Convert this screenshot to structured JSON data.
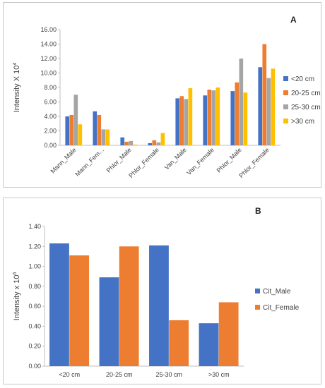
{
  "chart_data": [
    {
      "type": "bar",
      "panel_label": "A",
      "ylabel_base": "Intensity X 10",
      "ylabel_exp": "4",
      "ylim": [
        0,
        16
      ],
      "yticks": [
        "0.00",
        "2.00",
        "4.00",
        "6.00",
        "8.00",
        "10.00",
        "12.00",
        "14.00",
        "16.00"
      ],
      "categories": [
        "Mann_Male",
        "Mann_Fem...",
        "Phlor_Male",
        "Phlor_Female",
        "Van_Male",
        "Van_Female",
        "Phlor_Male",
        "Phlor_Female"
      ],
      "legend_position": "right",
      "series": [
        {
          "name": "<20 cm",
          "color": "#4472c4",
          "values": [
            4.0,
            4.7,
            1.1,
            0.3,
            6.5,
            6.9,
            7.5,
            10.8
          ]
        },
        {
          "name": "20-25 cm",
          "color": "#ed7d31",
          "values": [
            4.2,
            4.2,
            0.5,
            0.7,
            6.8,
            7.7,
            8.7,
            14.0
          ]
        },
        {
          "name": "25-30 cm",
          "color": "#a5a5a5",
          "values": [
            7.0,
            2.2,
            0.6,
            0.4,
            6.4,
            7.6,
            12.0,
            9.3
          ]
        },
        {
          "name": ">30 cm",
          "color": "#ffc000",
          "values": [
            2.9,
            2.2,
            0.1,
            1.7,
            7.9,
            8.0,
            7.3,
            10.6
          ]
        }
      ]
    },
    {
      "type": "bar",
      "panel_label": "B",
      "ylabel_base": "Intensity x 10",
      "ylabel_exp": "6",
      "ylim": [
        0,
        1.4
      ],
      "yticks": [
        "0.00",
        "0.20",
        "0.40",
        "0.60",
        "0.80",
        "1.00",
        "1.20",
        "1.40"
      ],
      "categories": [
        "<20 cm",
        "20-25 cm",
        "25-30 cm",
        ">30 cm"
      ],
      "legend_position": "right",
      "series": [
        {
          "name": "Cit_Male",
          "color": "#4472c4",
          "values": [
            1.23,
            0.89,
            1.21,
            0.43
          ]
        },
        {
          "name": "Cit_Female",
          "color": "#ed7d31",
          "values": [
            1.11,
            1.2,
            0.46,
            0.64
          ]
        }
      ]
    }
  ]
}
